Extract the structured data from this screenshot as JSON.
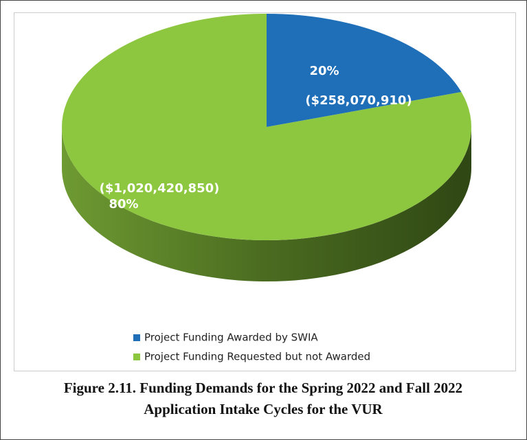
{
  "chart_data": {
    "type": "pie",
    "categories": [
      "Project Funding Awarded by SWIA",
      "Project Funding Requested but not Awarded"
    ],
    "values": [
      20,
      80
    ],
    "value_labels": [
      "20%",
      "80%"
    ],
    "amounts": [
      258070910,
      1020420850
    ],
    "amount_labels": [
      "($258,070,910)",
      "($1,020,420,850)"
    ],
    "colors": [
      "#1f6fb8",
      "#8dc63f"
    ],
    "legend": "bottom"
  },
  "caption": [
    "Figure 2.11. Funding Demands for the Spring 2022 and Fall 2022",
    "Application Intake Cycles for the VUR"
  ]
}
